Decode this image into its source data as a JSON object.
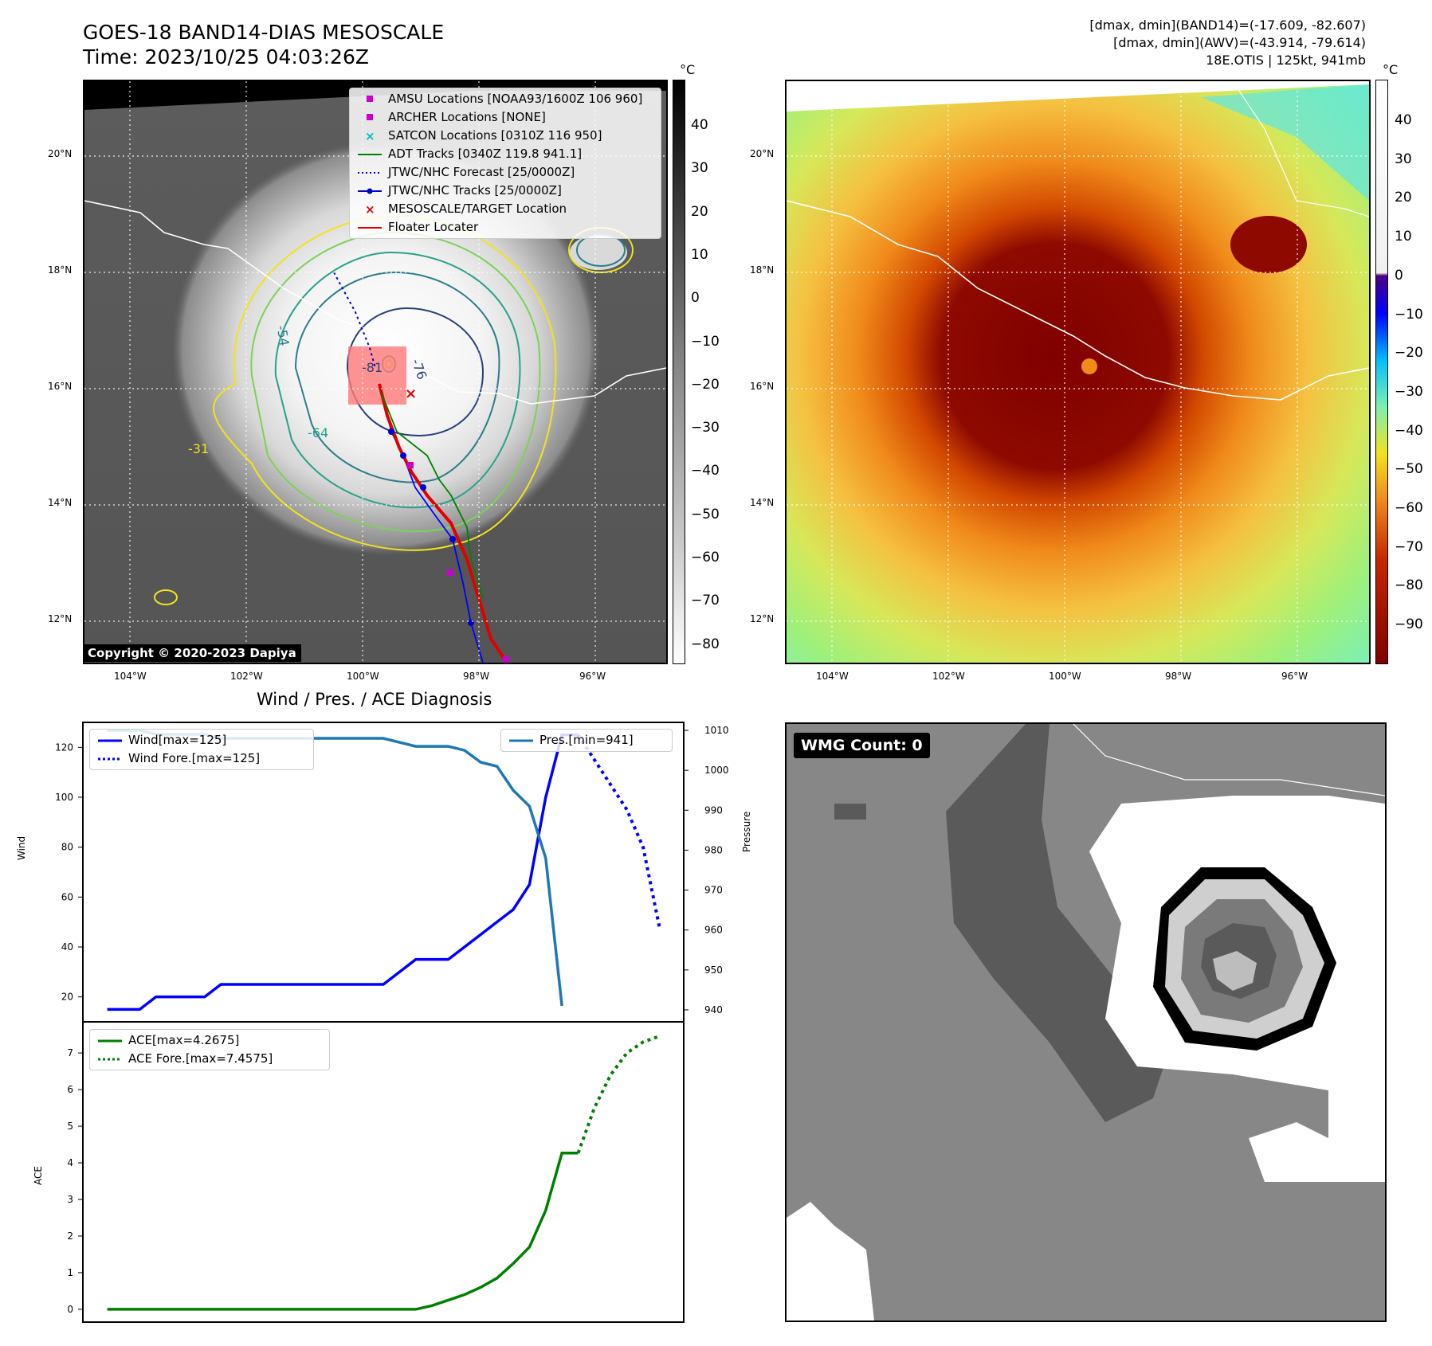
{
  "header": {
    "title_line1": "GOES-18 BAND14-DIAS MESOSCALE",
    "title_line2": "Time: 2023/10/25 04:03:26Z",
    "stat_line1": "[dmax, dmin](BAND14)=(-17.609, -82.607)",
    "stat_line2": "[dmax, dmin](AWV)=(-43.914, -79.614)",
    "stat_line3": "18E.OTIS | 125kt, 941mb"
  },
  "maps": {
    "lon_labels": [
      "104°W",
      "102°W",
      "100°W",
      "98°W",
      "96°W"
    ],
    "lat_labels": [
      "20°N",
      "18°N",
      "16°N",
      "14°N",
      "12°N"
    ],
    "cbar_unit": "°C",
    "left_cbar_ticks": [
      "40",
      "30",
      "20",
      "10",
      "0",
      "−10",
      "−20",
      "−30",
      "−40",
      "−50",
      "−60",
      "−70",
      "−80"
    ],
    "right_cbar_ticks": [
      "40",
      "30",
      "20",
      "10",
      "0",
      "−10",
      "−20",
      "−30",
      "−40",
      "−50",
      "−60",
      "−70",
      "−80",
      "−90"
    ],
    "contour_labels": [
      "-54",
      "-64",
      "-76",
      "-31",
      "-81"
    ],
    "copyright": "Copyright © 2020-2023 Dapiya",
    "legend": [
      {
        "label": "AMSU Locations [NOAA93/1600Z 106 960]",
        "color": "#cc00cc",
        "symbol": "square"
      },
      {
        "label": "ARCHER Locations [NONE]",
        "color": "#cc00cc",
        "symbol": "square"
      },
      {
        "label": "SATCON Locations [0310Z 116 950]",
        "color": "#00bfbf",
        "symbol": "x"
      },
      {
        "label": "ADT Tracks [0340Z 119.8 941.1]",
        "color": "#008000",
        "symbol": "line"
      },
      {
        "label": "JTWC/NHC Forecast [25/0000Z]",
        "color": "#0000cc",
        "symbol": "dotted"
      },
      {
        "label": "JTWC/NHC Tracks [25/0000Z]",
        "color": "#0000cc",
        "symbol": "line-dot"
      },
      {
        "label": "MESOSCALE/TARGET Location",
        "color": "#e00000",
        "symbol": "x"
      },
      {
        "label": "Floater Locater",
        "color": "#e00000",
        "symbol": "line"
      }
    ],
    "wmg_count": "WMG Count: 0"
  },
  "chart_data": [
    {
      "type": "line",
      "title": "Wind / Pres. / ACE Diagnosis",
      "ylabel": "Wind",
      "ylabel_right": "Pressure",
      "ylim": [
        10,
        130
      ],
      "ylim_right": [
        937,
        1012
      ],
      "y_ticks": [
        20,
        40,
        60,
        80,
        100,
        120
      ],
      "y_ticks_right": [
        940,
        950,
        960,
        970,
        980,
        990,
        1000,
        1010
      ],
      "x": [
        0,
        1,
        2,
        3,
        4,
        5,
        6,
        7,
        8,
        9,
        10,
        11,
        12,
        13,
        14,
        15,
        16,
        17,
        18,
        19,
        20,
        21,
        22,
        23,
        24,
        25,
        26,
        27
      ],
      "series": [
        {
          "name": "Wind[max=125]",
          "color": "#0000ff",
          "style": "solid",
          "x": [
            0,
            1,
            2,
            3,
            4,
            5,
            6,
            7,
            8,
            9,
            10,
            11,
            12,
            13,
            14,
            15,
            16,
            17,
            18,
            19,
            20,
            21,
            22,
            23,
            24,
            25,
            26,
            27,
            28,
            29
          ],
          "values": [
            15,
            15,
            15,
            20,
            20,
            20,
            20,
            25,
            25,
            25,
            25,
            25,
            25,
            25,
            25,
            25,
            25,
            25,
            30,
            35,
            35,
            35,
            40,
            45,
            50,
            55,
            65,
            100,
            125,
            125
          ]
        },
        {
          "name": "Wind Fore.[max=125]",
          "color": "#0000ff",
          "style": "dotted",
          "x": [
            29,
            30,
            31,
            32,
            33,
            34
          ],
          "values": [
            125,
            115,
            105,
            95,
            80,
            48
          ]
        },
        {
          "name": "Pres.[min=941]",
          "color": "#1f77b4",
          "style": "solid",
          "axis": "right",
          "x": [
            0,
            1,
            2,
            3,
            4,
            5,
            6,
            7,
            8,
            9,
            10,
            11,
            12,
            13,
            14,
            15,
            16,
            17,
            18,
            19,
            20,
            21,
            22,
            23,
            24,
            25,
            26,
            27,
            28
          ],
          "values": [
            1010,
            1010,
            1010,
            1009,
            1009,
            1009,
            1009,
            1008,
            1008,
            1008,
            1008,
            1008,
            1008,
            1008,
            1008,
            1008,
            1008,
            1008,
            1007,
            1006,
            1006,
            1006,
            1005,
            1002,
            1001,
            995,
            991,
            978,
            941
          ]
        }
      ]
    },
    {
      "type": "line",
      "ylabel": "ACE",
      "ylim": [
        -0.35,
        7.85
      ],
      "y_ticks": [
        0,
        1,
        2,
        3,
        4,
        5,
        6,
        7
      ],
      "series": [
        {
          "name": "ACE[max=4.2675]",
          "color": "#008000",
          "style": "solid",
          "x": [
            0,
            5,
            10,
            15,
            18,
            19,
            20,
            21,
            22,
            23,
            24,
            25,
            26,
            27,
            28,
            29
          ],
          "values": [
            0,
            0,
            0,
            0,
            0,
            0,
            0.1,
            0.25,
            0.4,
            0.6,
            0.85,
            1.25,
            1.7,
            2.7,
            4.2675,
            4.2675
          ]
        },
        {
          "name": "ACE Fore.[max=7.4575]",
          "color": "#008000",
          "style": "dotted",
          "x": [
            29,
            30,
            31,
            32,
            33,
            34
          ],
          "values": [
            4.2675,
            5.5,
            6.4,
            7.0,
            7.3,
            7.4575
          ]
        }
      ]
    }
  ]
}
